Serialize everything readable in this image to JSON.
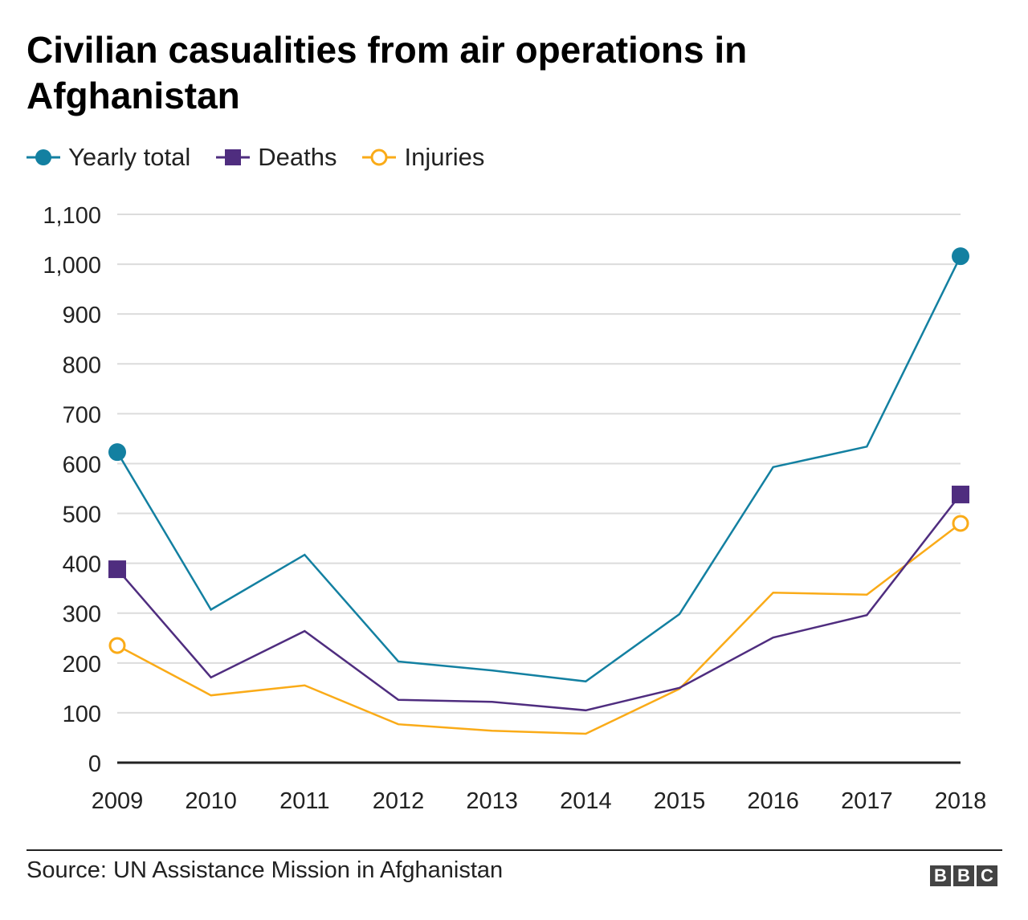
{
  "chart_data": {
    "type": "line",
    "title": "Civilian casualities from air operations in Afghanistan",
    "categories": [
      "2009",
      "2010",
      "2011",
      "2012",
      "2013",
      "2014",
      "2015",
      "2016",
      "2017",
      "2018"
    ],
    "series": [
      {
        "name": "Yearly total",
        "color": "#1380A1",
        "marker": "filled-circle",
        "values": [
          623,
          307,
          417,
          203,
          185,
          163,
          298,
          593,
          634,
          1016
        ]
      },
      {
        "name": "Deaths",
        "color": "#4F2D7F",
        "marker": "filled-square",
        "values": [
          388,
          171,
          264,
          126,
          122,
          105,
          150,
          251,
          296,
          538
        ]
      },
      {
        "name": "Injuries",
        "color": "#FAAB18",
        "marker": "hollow-circle",
        "values": [
          235,
          135,
          155,
          77,
          64,
          58,
          148,
          341,
          337,
          480
        ]
      }
    ],
    "yticks": [
      "0",
      "100",
      "200",
      "300",
      "400",
      "500",
      "600",
      "700",
      "800",
      "900",
      "1,000",
      "1,100"
    ],
    "ylim": [
      0,
      1100
    ],
    "grid": true,
    "legend": "top-left",
    "source": "Source: UN Assistance Mission in Afghanistan",
    "logo": "BBC"
  }
}
